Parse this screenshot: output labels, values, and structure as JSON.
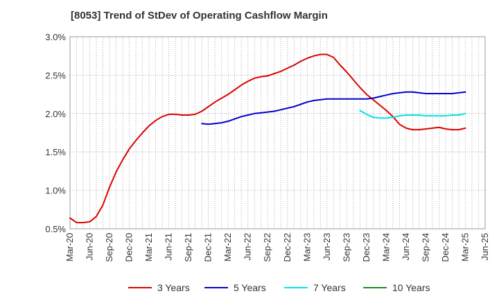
{
  "title": "[8053]  Trend of StDev of Operating Cashflow Margin",
  "chart_data": {
    "type": "line",
    "title": "[8053]  Trend of StDev of Operating Cashflow Margin",
    "xlabel": "",
    "ylabel": "",
    "x_tick_labels": [
      "Mar-20",
      "Jun-20",
      "Sep-20",
      "Dec-20",
      "Mar-21",
      "Jun-21",
      "Sep-21",
      "Dec-21",
      "Mar-22",
      "Jun-22",
      "Sep-22",
      "Dec-22",
      "Mar-23",
      "Jun-23",
      "Sep-23",
      "Dec-23",
      "Mar-24",
      "Jun-24",
      "Sep-24",
      "Dec-24",
      "Mar-25",
      "Jun-25"
    ],
    "y_ticks": [
      0.5,
      1.0,
      1.5,
      2.0,
      2.5,
      3.0
    ],
    "y_tick_labels": [
      "0.5%",
      "1.0%",
      "1.5%",
      "2.0%",
      "2.5%",
      "3.0%"
    ],
    "ylim": [
      0.5,
      3.0
    ],
    "x_range_months": [
      "2020-03",
      "2025-06"
    ],
    "grid": true,
    "legend_position": "bottom",
    "series": [
      {
        "name": "3 Years",
        "color": "#dd0000",
        "points": [
          [
            "2020-03",
            0.64
          ],
          [
            "2020-04",
            0.58
          ],
          [
            "2020-05",
            0.58
          ],
          [
            "2020-06",
            0.59
          ],
          [
            "2020-07",
            0.66
          ],
          [
            "2020-08",
            0.81
          ],
          [
            "2020-09",
            1.04
          ],
          [
            "2020-10",
            1.24
          ],
          [
            "2020-11",
            1.4
          ],
          [
            "2020-12",
            1.54
          ],
          [
            "2021-01",
            1.65
          ],
          [
            "2021-02",
            1.75
          ],
          [
            "2021-03",
            1.84
          ],
          [
            "2021-04",
            1.91
          ],
          [
            "2021-05",
            1.96
          ],
          [
            "2021-06",
            1.99
          ],
          [
            "2021-07",
            1.99
          ],
          [
            "2021-08",
            1.98
          ],
          [
            "2021-09",
            1.98
          ],
          [
            "2021-10",
            1.99
          ],
          [
            "2021-11",
            2.03
          ],
          [
            "2021-12",
            2.09
          ],
          [
            "2022-01",
            2.15
          ],
          [
            "2022-02",
            2.2
          ],
          [
            "2022-03",
            2.25
          ],
          [
            "2022-04",
            2.31
          ],
          [
            "2022-05",
            2.37
          ],
          [
            "2022-06",
            2.42
          ],
          [
            "2022-07",
            2.46
          ],
          [
            "2022-08",
            2.48
          ],
          [
            "2022-09",
            2.49
          ],
          [
            "2022-10",
            2.52
          ],
          [
            "2022-11",
            2.55
          ],
          [
            "2022-12",
            2.59
          ],
          [
            "2023-01",
            2.63
          ],
          [
            "2023-02",
            2.68
          ],
          [
            "2023-03",
            2.72
          ],
          [
            "2023-04",
            2.75
          ],
          [
            "2023-05",
            2.77
          ],
          [
            "2023-06",
            2.77
          ],
          [
            "2023-07",
            2.73
          ],
          [
            "2023-08",
            2.63
          ],
          [
            "2023-09",
            2.54
          ],
          [
            "2023-10",
            2.44
          ],
          [
            "2023-11",
            2.34
          ],
          [
            "2023-12",
            2.25
          ],
          [
            "2024-01",
            2.18
          ],
          [
            "2024-02",
            2.11
          ],
          [
            "2024-03",
            2.04
          ],
          [
            "2024-04",
            1.96
          ],
          [
            "2024-05",
            1.86
          ],
          [
            "2024-06",
            1.81
          ],
          [
            "2024-07",
            1.79
          ],
          [
            "2024-08",
            1.79
          ],
          [
            "2024-09",
            1.8
          ],
          [
            "2024-10",
            1.81
          ],
          [
            "2024-11",
            1.82
          ],
          [
            "2024-12",
            1.8
          ],
          [
            "2025-01",
            1.79
          ],
          [
            "2025-02",
            1.79
          ],
          [
            "2025-03",
            1.81
          ]
        ]
      },
      {
        "name": "5 Years",
        "color": "#0000cc",
        "points": [
          [
            "2021-11",
            1.87
          ],
          [
            "2021-12",
            1.86
          ],
          [
            "2022-01",
            1.87
          ],
          [
            "2022-02",
            1.88
          ],
          [
            "2022-03",
            1.9
          ],
          [
            "2022-04",
            1.93
          ],
          [
            "2022-05",
            1.96
          ],
          [
            "2022-06",
            1.98
          ],
          [
            "2022-07",
            2.0
          ],
          [
            "2022-08",
            2.01
          ],
          [
            "2022-09",
            2.02
          ],
          [
            "2022-10",
            2.03
          ],
          [
            "2022-11",
            2.05
          ],
          [
            "2022-12",
            2.07
          ],
          [
            "2023-01",
            2.09
          ],
          [
            "2023-02",
            2.12
          ],
          [
            "2023-03",
            2.15
          ],
          [
            "2023-04",
            2.17
          ],
          [
            "2023-05",
            2.18
          ],
          [
            "2023-06",
            2.19
          ],
          [
            "2023-07",
            2.19
          ],
          [
            "2023-08",
            2.19
          ],
          [
            "2023-09",
            2.19
          ],
          [
            "2023-10",
            2.19
          ],
          [
            "2023-11",
            2.19
          ],
          [
            "2023-12",
            2.19
          ],
          [
            "2024-01",
            2.2
          ],
          [
            "2024-02",
            2.22
          ],
          [
            "2024-03",
            2.24
          ],
          [
            "2024-04",
            2.26
          ],
          [
            "2024-05",
            2.27
          ],
          [
            "2024-06",
            2.28
          ],
          [
            "2024-07",
            2.28
          ],
          [
            "2024-08",
            2.27
          ],
          [
            "2024-09",
            2.26
          ],
          [
            "2024-10",
            2.26
          ],
          [
            "2024-11",
            2.26
          ],
          [
            "2024-12",
            2.26
          ],
          [
            "2025-01",
            2.26
          ],
          [
            "2025-02",
            2.27
          ],
          [
            "2025-03",
            2.28
          ]
        ]
      },
      {
        "name": "7 Years",
        "color": "#00e5e5",
        "points": [
          [
            "2023-11",
            2.04
          ],
          [
            "2023-12",
            1.99
          ],
          [
            "2024-01",
            1.95
          ],
          [
            "2024-02",
            1.94
          ],
          [
            "2024-03",
            1.94
          ],
          [
            "2024-04",
            1.95
          ],
          [
            "2024-05",
            1.97
          ],
          [
            "2024-06",
            1.98
          ],
          [
            "2024-07",
            1.98
          ],
          [
            "2024-08",
            1.98
          ],
          [
            "2024-09",
            1.97
          ],
          [
            "2024-10",
            1.97
          ],
          [
            "2024-11",
            1.97
          ],
          [
            "2024-12",
            1.97
          ],
          [
            "2025-01",
            1.98
          ],
          [
            "2025-02",
            1.98
          ],
          [
            "2025-03",
            2.0
          ]
        ]
      },
      {
        "name": "10 Years",
        "color": "#228822",
        "points": []
      }
    ]
  }
}
